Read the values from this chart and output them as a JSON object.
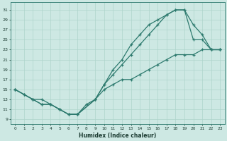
{
  "xlabel": "Humidex (Indice chaleur)",
  "xlim": [
    -0.5,
    23.5
  ],
  "ylim": [
    8.0,
    32.5
  ],
  "yticks": [
    9,
    11,
    13,
    15,
    17,
    19,
    21,
    23,
    25,
    27,
    29,
    31
  ],
  "xticks": [
    0,
    1,
    2,
    3,
    4,
    5,
    6,
    7,
    8,
    9,
    10,
    11,
    12,
    13,
    14,
    15,
    16,
    17,
    18,
    19,
    20,
    21,
    22,
    23
  ],
  "bg_color": "#cde8e3",
  "grid_color": "#aed4cc",
  "line_color": "#2d7a6e",
  "line1_x": [
    0,
    1,
    2,
    3,
    4,
    5,
    6,
    7,
    8,
    9,
    10,
    11,
    12,
    13,
    14,
    15,
    16,
    17,
    18,
    19,
    20,
    21,
    22,
    23
  ],
  "line1_y": [
    15,
    14,
    13,
    13,
    12,
    11,
    10,
    10,
    12,
    13,
    15,
    16,
    17,
    17,
    18,
    19,
    20,
    21,
    22,
    22,
    22,
    23,
    23,
    23
  ],
  "line2_x": [
    0,
    2,
    3,
    4,
    5,
    6,
    7,
    9,
    10,
    11,
    12,
    13,
    14,
    15,
    16,
    17,
    18,
    19,
    20,
    21,
    22,
    23
  ],
  "line2_y": [
    15,
    13,
    12,
    12,
    11,
    10,
    10,
    13,
    16,
    18,
    20,
    22,
    24,
    26,
    28,
    30,
    31,
    31,
    28,
    26,
    23,
    23
  ],
  "line3_x": [
    0,
    1,
    2,
    3,
    4,
    5,
    6,
    7,
    9,
    10,
    11,
    12,
    13,
    14,
    15,
    16,
    17,
    18,
    19,
    20,
    21,
    22,
    23
  ],
  "line3_y": [
    15,
    14,
    13,
    12,
    12,
    11,
    10,
    10,
    13,
    16,
    19,
    21,
    24,
    26,
    28,
    29,
    30,
    31,
    31,
    25,
    25,
    23,
    23
  ]
}
